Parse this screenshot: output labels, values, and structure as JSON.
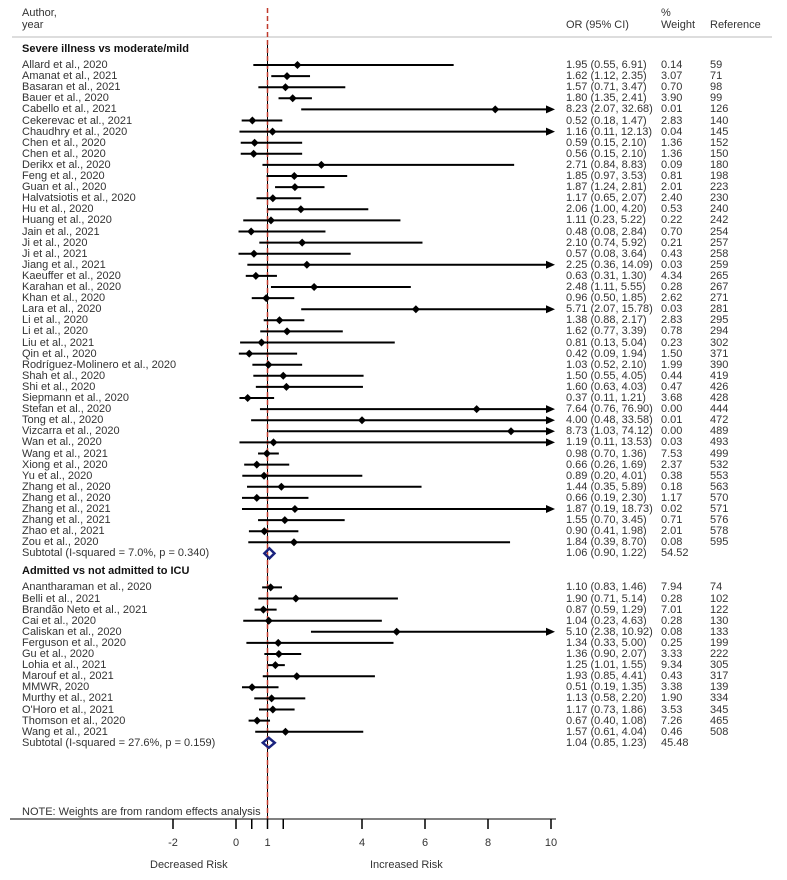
{
  "header": {
    "author_line1": "Author,",
    "author_line2": "year",
    "or_label": "OR (95% CI)",
    "weight_line1": "%",
    "weight_line2": "Weight",
    "reference_label": "Reference"
  },
  "note": "NOTE: Weights are from random effects analysis",
  "colors": {
    "marker": "#000000",
    "null_line": "#c0392b",
    "subtotal": "#1a237e"
  },
  "chart_data": {
    "type": "forest",
    "measure": "OR (95% CI)",
    "xlim": [
      -2,
      10
    ],
    "ticks": [
      -2,
      0,
      1,
      4,
      6,
      8,
      10
    ],
    "minor_ticks": [
      0.5,
      1.5
    ],
    "null_value": 1,
    "left_label": "Decreased Risk",
    "right_label": "Increased Risk",
    "groups": [
      {
        "title": "Severe illness vs moderate/mild",
        "studies": [
          {
            "label": "Allard et al., 2020",
            "or": 1.95,
            "lo": 0.55,
            "hi": 6.91,
            "weight": "0.14",
            "ref": "59"
          },
          {
            "label": "Amanat et al., 2021",
            "or": 1.62,
            "lo": 1.12,
            "hi": 2.35,
            "weight": "3.07",
            "ref": "71"
          },
          {
            "label": "Basaran et al., 2021",
            "or": 1.57,
            "lo": 0.71,
            "hi": 3.47,
            "weight": "0.70",
            "ref": "98"
          },
          {
            "label": "Bauer et al., 2020",
            "or": 1.8,
            "lo": 1.35,
            "hi": 2.41,
            "weight": "3.90",
            "ref": "99"
          },
          {
            "label": "Cabello et al., 2021",
            "or": 8.23,
            "lo": 2.07,
            "hi": 32.68,
            "weight": "0.01",
            "ref": "126"
          },
          {
            "label": "Cekerevac et al., 2021",
            "or": 0.52,
            "lo": 0.18,
            "hi": 1.47,
            "weight": "2.83",
            "ref": "140"
          },
          {
            "label": "Chaudhry et al., 2020",
            "or": 1.16,
            "lo": 0.11,
            "hi": 12.13,
            "weight": "0.04",
            "ref": "145"
          },
          {
            "label": "Chen et al., 2020",
            "or": 0.59,
            "lo": 0.15,
            "hi": 2.1,
            "weight": "1.36",
            "ref": "152"
          },
          {
            "label": "Chen et al., 2020",
            "or": 0.56,
            "lo": 0.15,
            "hi": 2.1,
            "weight": "1.36",
            "ref": "150"
          },
          {
            "label": "Derikx et al., 2020",
            "or": 2.71,
            "lo": 0.84,
            "hi": 8.83,
            "weight": "0.09",
            "ref": "180"
          },
          {
            "label": "Feng et al., 2020",
            "or": 1.85,
            "lo": 0.97,
            "hi": 3.53,
            "weight": "0.81",
            "ref": "198"
          },
          {
            "label": "Guan et al., 2020",
            "or": 1.87,
            "lo": 1.24,
            "hi": 2.81,
            "weight": "2.01",
            "ref": "223"
          },
          {
            "label": "Halvatsiotis et al., 2020",
            "or": 1.17,
            "lo": 0.65,
            "hi": 2.07,
            "weight": "2.40",
            "ref": "230"
          },
          {
            "label": "Hu et al., 2020",
            "or": 2.06,
            "lo": 1.0,
            "hi": 4.2,
            "weight": "0.53",
            "ref": "240"
          },
          {
            "label": "Huang et al., 2020",
            "or": 1.11,
            "lo": 0.23,
            "hi": 5.22,
            "weight": "0.22",
            "ref": "242"
          },
          {
            "label": "Jain et al., 2021",
            "or": 0.48,
            "lo": 0.08,
            "hi": 2.84,
            "weight": "0.70",
            "ref": "254"
          },
          {
            "label": "Ji et al., 2020",
            "or": 2.1,
            "lo": 0.74,
            "hi": 5.92,
            "weight": "0.21",
            "ref": "257"
          },
          {
            "label": "Ji et al., 2021",
            "or": 0.57,
            "lo": 0.08,
            "hi": 3.64,
            "weight": "0.43",
            "ref": "258"
          },
          {
            "label": "Jiang et al., 2021",
            "or": 2.25,
            "lo": 0.36,
            "hi": 14.09,
            "weight": "0.03",
            "ref": "259"
          },
          {
            "label": "Kaeuffer et al., 2020",
            "or": 0.63,
            "lo": 0.31,
            "hi": 1.3,
            "weight": "4.34",
            "ref": "265"
          },
          {
            "label": "Karahan et al., 2020",
            "or": 2.48,
            "lo": 1.11,
            "hi": 5.55,
            "weight": "0.28",
            "ref": "267"
          },
          {
            "label": "Khan et al., 2020",
            "or": 0.96,
            "lo": 0.5,
            "hi": 1.85,
            "weight": "2.62",
            "ref": "271"
          },
          {
            "label": "Lara et al., 2020",
            "or": 5.71,
            "lo": 2.07,
            "hi": 15.78,
            "weight": "0.03",
            "ref": "281"
          },
          {
            "label": "Li et al., 2020",
            "or": 1.38,
            "lo": 0.88,
            "hi": 2.17,
            "weight": "2.83",
            "ref": "295"
          },
          {
            "label": "Li et al., 2020",
            "or": 1.62,
            "lo": 0.77,
            "hi": 3.39,
            "weight": "0.78",
            "ref": "294"
          },
          {
            "label": "Liu et al., 2021",
            "or": 0.81,
            "lo": 0.13,
            "hi": 5.04,
            "weight": "0.23",
            "ref": "302"
          },
          {
            "label": "Qin et al., 2020",
            "or": 0.42,
            "lo": 0.09,
            "hi": 1.94,
            "weight": "1.50",
            "ref": "371"
          },
          {
            "label": "Rodríguez-Molinero et al., 2020",
            "or": 1.03,
            "lo": 0.52,
            "hi": 2.1,
            "weight": "1.99",
            "ref": "390"
          },
          {
            "label": "Shah et al., 2020",
            "or": 1.5,
            "lo": 0.55,
            "hi": 4.05,
            "weight": "0.44",
            "ref": "419"
          },
          {
            "label": "Shi et al., 2020",
            "or": 1.6,
            "lo": 0.63,
            "hi": 4.03,
            "weight": "0.47",
            "ref": "426"
          },
          {
            "label": "Siepmann et al., 2020",
            "or": 0.37,
            "lo": 0.11,
            "hi": 1.21,
            "weight": "3.68",
            "ref": "428"
          },
          {
            "label": "Stefan et al., 2020",
            "or": 7.64,
            "lo": 0.76,
            "hi": 76.9,
            "weight": "0.00",
            "ref": "444"
          },
          {
            "label": "Tong et al., 2020",
            "or": 4.0,
            "lo": 0.48,
            "hi": 33.58,
            "weight": "0.01",
            "ref": "472"
          },
          {
            "label": "Vizcarra et al., 2020",
            "or": 8.73,
            "lo": 1.03,
            "hi": 74.12,
            "weight": "0.00",
            "ref": "489"
          },
          {
            "label": "Wan et al., 2020",
            "or": 1.19,
            "lo": 0.11,
            "hi": 13.53,
            "weight": "0.03",
            "ref": "493"
          },
          {
            "label": "Wang et al.,  2021",
            "or": 0.98,
            "lo": 0.7,
            "hi": 1.36,
            "weight": "7.53",
            "ref": "499"
          },
          {
            "label": "Xiong et al., 2020",
            "or": 0.66,
            "lo": 0.26,
            "hi": 1.69,
            "weight": "2.37",
            "ref": "532"
          },
          {
            "label": "Yu et al., 2020",
            "or": 0.89,
            "lo": 0.2,
            "hi": 4.01,
            "weight": "0.38",
            "ref": "553"
          },
          {
            "label": "Zhang et al., 2020",
            "or": 1.44,
            "lo": 0.35,
            "hi": 5.89,
            "weight": "0.18",
            "ref": "563"
          },
          {
            "label": "Zhang et al., 2020",
            "or": 0.66,
            "lo": 0.19,
            "hi": 2.3,
            "weight": "1.17",
            "ref": "570"
          },
          {
            "label": "Zhang et al., 2021",
            "or": 1.87,
            "lo": 0.19,
            "hi": 18.73,
            "weight": "0.02",
            "ref": "571"
          },
          {
            "label": "Zhang et al., 2021",
            "or": 1.55,
            "lo": 0.7,
            "hi": 3.45,
            "weight": "0.71",
            "ref": "576"
          },
          {
            "label": "Zhao et al., 2021",
            "or": 0.9,
            "lo": 0.41,
            "hi": 1.98,
            "weight": "2.01",
            "ref": "578"
          },
          {
            "label": "Zou et al., 2020",
            "or": 1.84,
            "lo": 0.39,
            "hi": 8.7,
            "weight": "0.08",
            "ref": "595"
          }
        ],
        "subtotal": {
          "label": "Subtotal  (I-squared = 7.0%, p = 0.340)",
          "or": 1.06,
          "lo": 0.9,
          "hi": 1.22,
          "weight": "54.52"
        }
      },
      {
        "title": "Admitted vs not admitted to ICU",
        "studies": [
          {
            "label": "Anantharaman et al., 2020",
            "or": 1.1,
            "lo": 0.83,
            "hi": 1.46,
            "weight": "7.94",
            "ref": "74"
          },
          {
            "label": "Belli et al., 2021",
            "or": 1.9,
            "lo": 0.71,
            "hi": 5.14,
            "weight": "0.28",
            "ref": "102"
          },
          {
            "label": "Brandão Neto et al., 2021",
            "or": 0.87,
            "lo": 0.59,
            "hi": 1.29,
            "weight": "7.01",
            "ref": "122"
          },
          {
            "label": "Cai et al., 2020",
            "or": 1.04,
            "lo": 0.23,
            "hi": 4.63,
            "weight": "0.28",
            "ref": "130"
          },
          {
            "label": "Caliskan et al., 2020",
            "or": 5.1,
            "lo": 2.38,
            "hi": 10.92,
            "weight": "0.08",
            "ref": "133"
          },
          {
            "label": "Ferguson et al., 2020",
            "or": 1.34,
            "lo": 0.33,
            "hi": 5.0,
            "weight": "0.25",
            "ref": "199"
          },
          {
            "label": "Gu et al., 2020",
            "or": 1.36,
            "lo": 0.9,
            "hi": 2.07,
            "weight": "3.33",
            "ref": "222"
          },
          {
            "label": "Lohia et al., 2021",
            "or": 1.25,
            "lo": 1.01,
            "hi": 1.55,
            "weight": "9.34",
            "ref": "305"
          },
          {
            "label": "Marouf et al., 2021",
            "or": 1.93,
            "lo": 0.85,
            "hi": 4.41,
            "weight": "0.43",
            "ref": "317"
          },
          {
            "label": "MMWR, 2020",
            "or": 0.51,
            "lo": 0.19,
            "hi": 1.35,
            "weight": "3.38",
            "ref": "139"
          },
          {
            "label": "Murthy et al., 2021",
            "or": 1.13,
            "lo": 0.58,
            "hi": 2.2,
            "weight": "1.90",
            "ref": "334"
          },
          {
            "label": "O'Horo et al., 2021",
            "or": 1.17,
            "lo": 0.73,
            "hi": 1.86,
            "weight": "3.53",
            "ref": "345"
          },
          {
            "label": "Thomson et al., 2020",
            "or": 0.67,
            "lo": 0.4,
            "hi": 1.08,
            "weight": "7.26",
            "ref": "465"
          },
          {
            "label": "Wang et al.,  2021",
            "or": 1.57,
            "lo": 0.61,
            "hi": 4.04,
            "weight": "0.46",
            "ref": "508"
          }
        ],
        "subtotal": {
          "label": "Subtotal  (I-squared = 27.6%, p = 0.159)",
          "or": 1.04,
          "lo": 0.85,
          "hi": 1.23,
          "weight": "45.48"
        }
      }
    ]
  }
}
